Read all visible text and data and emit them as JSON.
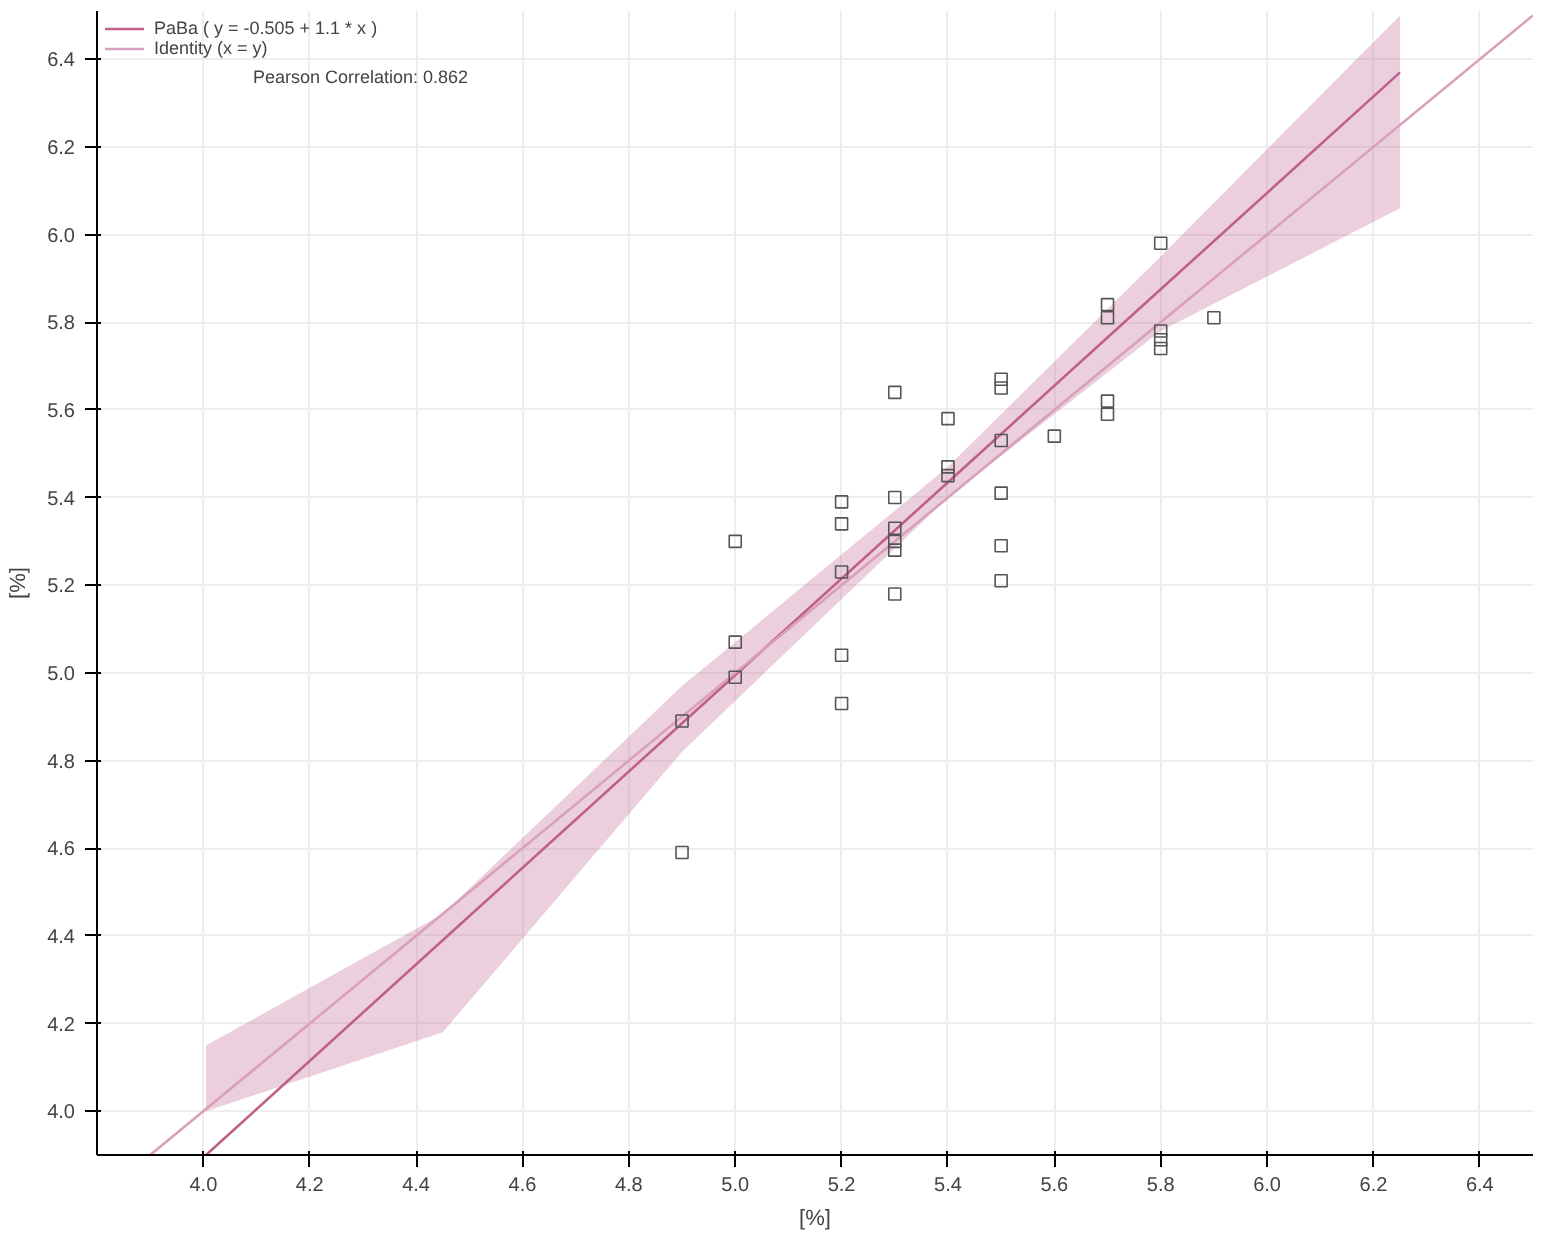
{
  "chart_data": {
    "type": "scatter",
    "xlabel": "[%]",
    "ylabel": "[%]",
    "xlim": [
      3.8,
      6.5
    ],
    "ylim": [
      3.9,
      6.51
    ],
    "xticks": [
      {
        "value": 4.0,
        "label": "4.0"
      },
      4.2,
      4.4,
      4.6,
      4.8,
      {
        "value": 5.0,
        "label": "5.0"
      },
      5.2,
      5.4,
      5.6,
      5.8,
      {
        "value": 6.0,
        "label": "6.0"
      },
      6.2,
      6.4
    ],
    "yticks": [
      {
        "value": 4.0,
        "label": "4.0"
      },
      4.2,
      4.4,
      4.6,
      4.8,
      {
        "value": 5.0,
        "label": "5.0"
      },
      5.2,
      5.4,
      5.6,
      5.8,
      {
        "value": 6.0,
        "label": "6.0"
      },
      6.2,
      6.4
    ],
    "grid": true,
    "legend": "top left",
    "annotations": [
      "Pearson Correlation: 0.862"
    ],
    "series": [
      {
        "marker": "square",
        "color": "#555555",
        "x": [
          4.9,
          4.9,
          5.0,
          5.0,
          5.0,
          5.2,
          5.2,
          5.2,
          5.2,
          5.2,
          5.3,
          5.3,
          5.3,
          5.3,
          5.3,
          5.3,
          5.4,
          5.4,
          5.4,
          5.5,
          5.5,
          5.5,
          5.5,
          5.5,
          5.5,
          5.6,
          5.7,
          5.7,
          5.7,
          5.7,
          5.8,
          5.8,
          5.8,
          5.8,
          5.9
        ],
        "values": [
          4.59,
          4.89,
          5.3,
          5.07,
          4.99,
          5.39,
          5.34,
          5.23,
          5.04,
          4.93,
          5.64,
          5.4,
          5.33,
          5.3,
          5.28,
          5.18,
          5.58,
          5.47,
          5.45,
          5.67,
          5.65,
          5.53,
          5.41,
          5.29,
          5.21,
          5.54,
          5.84,
          5.81,
          5.62,
          5.59,
          5.98,
          5.78,
          5.76,
          5.74,
          5.81
        ]
      },
      {
        "type": "line",
        "name": "PaBa ( y = -0.505 + 1.1 * x )",
        "color": "#c0608a",
        "x": [
          4.005,
          4.45,
          4.9,
          5.4,
          5.8,
          6.25
        ],
        "values": [
          3.9,
          4.39,
          4.885,
          5.435,
          5.875,
          6.37
        ],
        "lower": [
          4.0,
          4.18,
          4.82,
          5.4,
          5.78,
          6.06
        ],
        "upper": [
          4.15,
          4.45,
          4.97,
          5.47,
          5.95,
          6.5
        ]
      },
      {
        "type": "line",
        "name": "Identity (x = y)",
        "color": "#d8a0bc",
        "x": [
          3.9,
          6.5
        ],
        "values": [
          3.9,
          6.5
        ]
      }
    ]
  }
}
